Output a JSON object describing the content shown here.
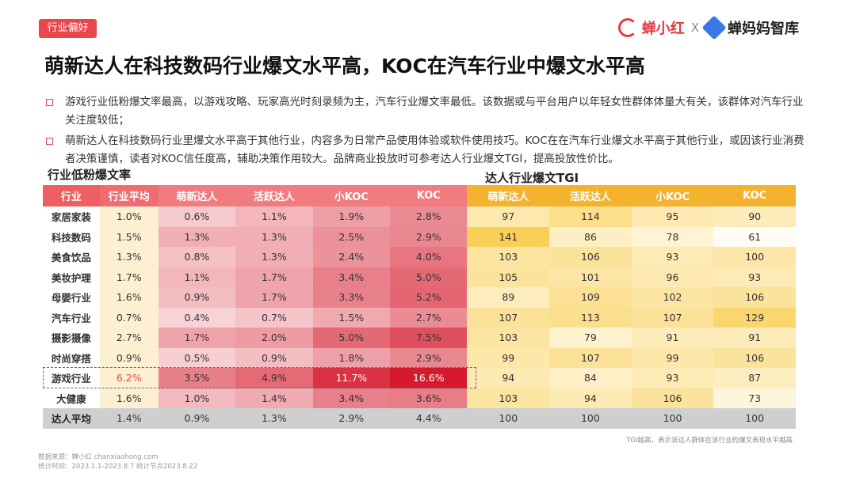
{
  "tag": "行业偏好",
  "brand": {
    "left": "蝉小红",
    "x": "X",
    "right": "蝉妈妈智库"
  },
  "title": "萌新达人在科技数码行业爆文水平高，KOC在汽车行业中爆文水平高",
  "bullets": [
    "游戏行业低粉爆文率最高，以游戏攻略、玩家高光时刻录频为主，汽车行业爆文率最低。该数据或与平台用户以年轻女性群体体量大有关，该群体对汽车行业关注度较低；",
    "萌新达人在科技数码行业里爆文水平高于其他行业，内容多为日常产品使用体验或软件使用技巧。KOC在在汽车行业爆文水平高于其他行业，或因该行业消费者决策谨慎，读者对KOC信任度高，辅助决策作用较大。品牌商业投放时可参考达人行业爆文TGI，提高投放性价比。"
  ],
  "subtitle_left": "行业低粉爆文率",
  "subtitle_right": "达人行业爆文TGI",
  "headers": {
    "industry": "行业",
    "avg": "行业平均",
    "left": [
      "萌新达人",
      "活跃达人",
      "小KOC",
      "KOC"
    ],
    "right": [
      "萌新达人",
      "活跃达人",
      "小KOC",
      "KOC"
    ]
  },
  "rows": [
    {
      "name": "家居家装",
      "avg": "1.0%",
      "rates": [
        "0.6%",
        "1.1%",
        "1.9%",
        "2.8%"
      ],
      "tgi": [
        "97",
        "114",
        "95",
        "90"
      ]
    },
    {
      "name": "科技数码",
      "avg": "1.5%",
      "rates": [
        "1.3%",
        "1.3%",
        "2.5%",
        "2.9%"
      ],
      "tgi": [
        "141",
        "86",
        "78",
        "61"
      ]
    },
    {
      "name": "美食饮品",
      "avg": "1.3%",
      "rates": [
        "0.8%",
        "1.3%",
        "2.4%",
        "4.0%"
      ],
      "tgi": [
        "103",
        "106",
        "93",
        "100"
      ]
    },
    {
      "name": "美妆护理",
      "avg": "1.7%",
      "rates": [
        "1.1%",
        "1.7%",
        "3.4%",
        "5.0%"
      ],
      "tgi": [
        "105",
        "101",
        "96",
        "93"
      ]
    },
    {
      "name": "母婴行业",
      "avg": "1.6%",
      "rates": [
        "0.9%",
        "1.7%",
        "3.3%",
        "5.2%"
      ],
      "tgi": [
        "89",
        "109",
        "102",
        "106"
      ]
    },
    {
      "name": "汽车行业",
      "avg": "0.7%",
      "rates": [
        "0.4%",
        "0.7%",
        "1.5%",
        "2.7%"
      ],
      "tgi": [
        "107",
        "113",
        "107",
        "129"
      ]
    },
    {
      "name": "摄影摄像",
      "avg": "2.7%",
      "rates": [
        "1.7%",
        "2.0%",
        "5.0%",
        "7.5%"
      ],
      "tgi": [
        "103",
        "79",
        "91",
        "91"
      ]
    },
    {
      "name": "时尚穿搭",
      "avg": "0.9%",
      "rates": [
        "0.5%",
        "0.9%",
        "1.8%",
        "2.9%"
      ],
      "tgi": [
        "99",
        "107",
        "99",
        "106"
      ]
    },
    {
      "name": "游戏行业",
      "avg": "6.2%",
      "rates": [
        "3.5%",
        "4.9%",
        "11.7%",
        "16.6%"
      ],
      "tgi": [
        "94",
        "84",
        "93",
        "87"
      ]
    },
    {
      "name": "大健康",
      "avg": "1.6%",
      "rates": [
        "1.0%",
        "1.4%",
        "3.4%",
        "3.6%"
      ],
      "tgi": [
        "103",
        "94",
        "106",
        "73"
      ]
    }
  ],
  "total": {
    "name": "达人平均",
    "avg": "1.4%",
    "rates": [
      "0.9%",
      "1.3%",
      "2.9%",
      "4.4%"
    ],
    "tgi": [
      "100",
      "100",
      "100",
      "100"
    ]
  },
  "highlight_row": "游戏行业",
  "note": "TGI越高，表示该达人群体在该行业的爆文表现水平越高",
  "source": "数据来源：蝉小红 chanxiaohong.com",
  "period": "统计时间：2023.1.1-2023.8.7  统计节点2023.8.22"
}
